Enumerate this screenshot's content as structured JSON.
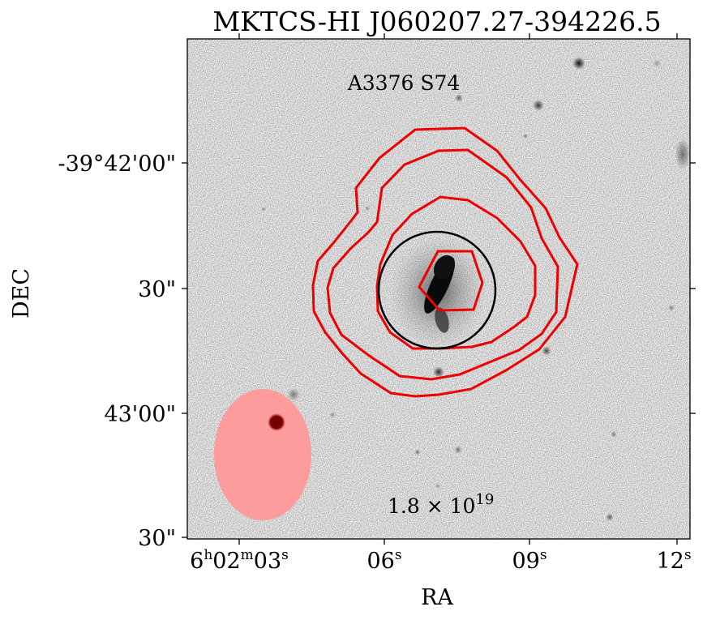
{
  "figure": {
    "title": "MKTCS-HI J060207.27-394226.5",
    "inset_label": "A3376 S74",
    "column_density_base": "1.8 × 10",
    "column_density_exp": "19",
    "xlabel": "RA",
    "ylabel": "DEC"
  },
  "axes": {
    "dec_ticks": [
      "-39°42'00\"",
      "30\"",
      "43'00\"",
      "30\""
    ],
    "ra_ticks": [
      {
        "base": "6",
        "h": "h",
        "mid1": "02",
        "m": "m",
        "mid2": "03",
        "s": "s"
      },
      {
        "base": "06",
        "s": "s"
      },
      {
        "base": "09",
        "s": "s"
      },
      {
        "base": "12",
        "s": "s"
      }
    ]
  },
  "colors": {
    "contour": "#ee0000",
    "aperture": "#000000",
    "beam": "#ff9999"
  }
}
